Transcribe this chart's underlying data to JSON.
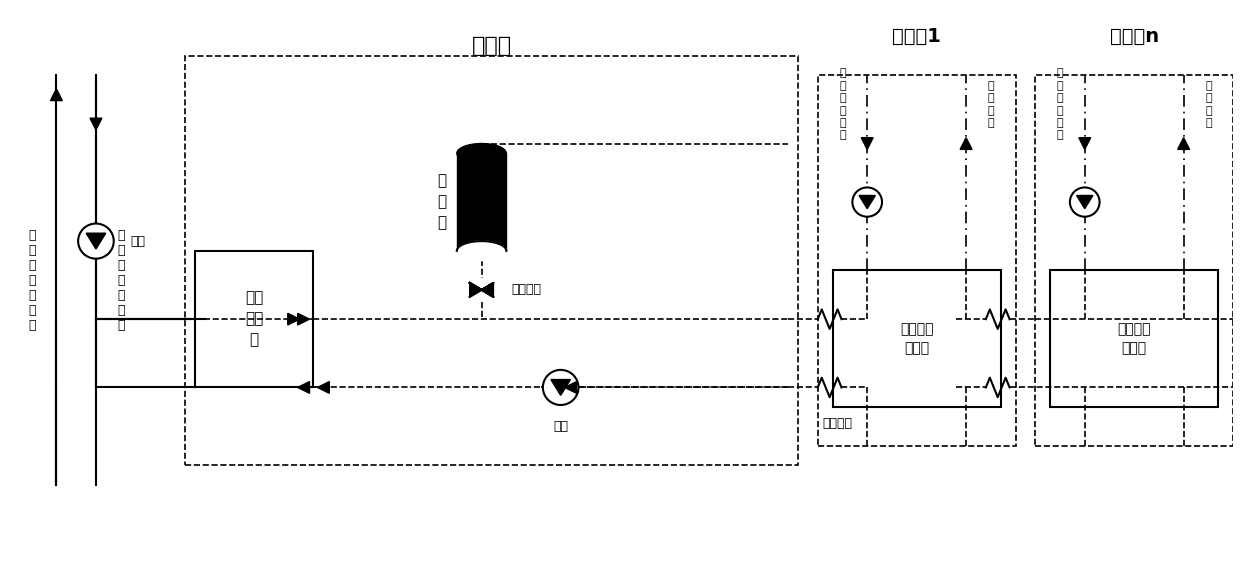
{
  "title": "",
  "bg_color": "#ffffff",
  "line_color": "#000000",
  "fig_width": 12.4,
  "fig_height": 5.7,
  "dpi": 100,
  "labels": {
    "waste_heat_return": "废\n热\n或\n地\n热\n回\n水",
    "waste_heat_supply": "废\n热\n或\n地\n热\n供\n水",
    "water_pump_left": "水泵",
    "heat_source_station": "热源站",
    "storage_tank": "蓄\n热\n罐",
    "water_heat_exchanger": "水水\n换热\n器",
    "primary_supply": "一次供水",
    "water_pump_bottom": "水泵",
    "primary_return": "一次回水",
    "heat_station1_title": "热力站1",
    "heat_station_n_title": "热力站n",
    "secondary_return_pump1": "二\n次\n回\n水\n水\n泵",
    "secondary_supply1": "二\n次\n供\n水",
    "compressor1": "压缩式换\n热机组",
    "secondary_return_pump_n": "二\n次\n回\n水\n水\n泵",
    "secondary_supply_n": "二\n次\n供\n水",
    "compressor_n": "压缩式换\n热机组"
  }
}
